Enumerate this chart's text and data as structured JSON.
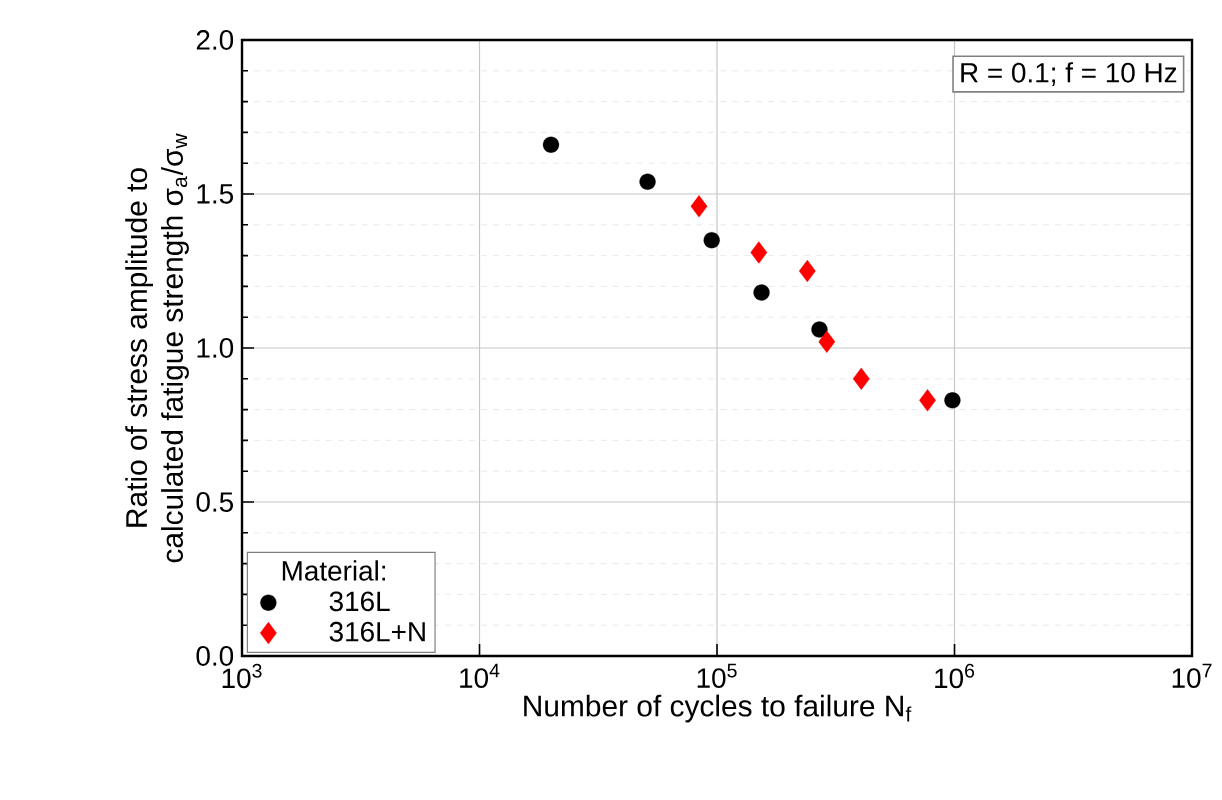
{
  "chart_data": {
    "type": "scatter",
    "xlabel": "Number of cycles to failure N$_{f}$",
    "ylabel": "Ratio of stress amplitude to\ncalculated fatigue strength σ$_{a}$/σ$_{w}$",
    "legend_title": "Material:",
    "annotations": [
      "R = 0.1; f = 10 Hz"
    ],
    "log": "x",
    "xlim": [
      1000,
      10000000
    ],
    "xticks": [
      {
        "value": 1000,
        "label": "10$^{3}$"
      },
      {
        "value": 10000,
        "label": "10$^{4}$"
      },
      {
        "value": 100000,
        "label": "10$^{5}$"
      },
      {
        "value": 1000000,
        "label": "10$^{6}$"
      },
      {
        "value": 10000000,
        "label": "10$^{7}$"
      }
    ],
    "ylim": [
      0,
      2
    ],
    "yticks": [
      {
        "value": 0,
        "label": "0.0"
      },
      {
        "value": 0.5,
        "label": "0.5"
      },
      {
        "value": 1,
        "label": "1.0"
      },
      {
        "value": 1.5,
        "label": "1.5"
      },
      {
        "value": 2,
        "label": "2.0"
      }
    ],
    "grid": true,
    "legend": "bottom left",
    "series": [
      {
        "name": "316L",
        "color": "#000000",
        "marker": "circle",
        "x": [
          20000,
          51000,
          95000,
          154000,
          270000,
          980000
        ],
        "values": [
          1.66,
          1.54,
          1.35,
          1.18,
          1.06,
          0.83
        ]
      },
      {
        "name": "316L+N",
        "color": "#ff0000",
        "marker": "diamond",
        "x": [
          84000,
          150000,
          240000,
          290000,
          405000,
          770000
        ],
        "values": [
          1.46,
          1.31,
          1.25,
          1.02,
          0.9,
          0.83
        ]
      }
    ]
  }
}
